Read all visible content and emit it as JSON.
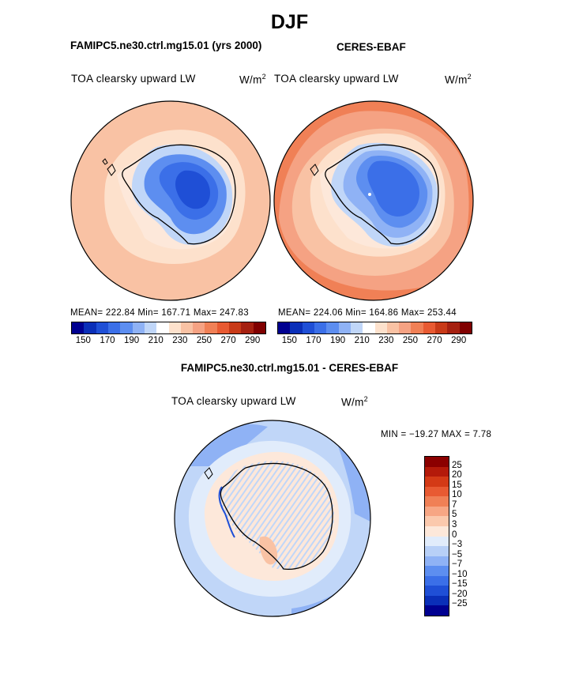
{
  "figure_title": "DJF",
  "panels": [
    {
      "title": "FAMIPC5.ne30.ctrl.mg15.01 (yrs 2000)",
      "variable": "TOA clearsky upward LW",
      "units": "W/m",
      "units_exp": "2",
      "stats": "MEAN= 222.84   Min= 167.71   Max= 247.83",
      "colorbar_ticks": [
        "150",
        "170",
        "190",
        "210",
        "230",
        "250",
        "270",
        "290"
      ]
    },
    {
      "title": "CERES-EBAF",
      "variable": "TOA clearsky upward LW",
      "units": "W/m",
      "units_exp": "2",
      "stats": "MEAN= 224.06   Min= 164.86   Max= 253.44",
      "colorbar_ticks": [
        "150",
        "170",
        "190",
        "210",
        "230",
        "250",
        "270",
        "290"
      ]
    }
  ],
  "difference": {
    "title": "FAMIPC5.ne30.ctrl.mg15.01 - CERES-EBAF",
    "variable": "TOA clearsky upward LW",
    "units": "W/m",
    "units_exp": "2",
    "stats": "MIN = −19.27 MAX =    7.78",
    "colorbar_ticks": [
      "25",
      "20",
      "15",
      "10",
      "7",
      "5",
      "3",
      "0",
      "−3",
      "−5",
      "−7",
      "−10",
      "−15",
      "−20",
      "−25"
    ]
  },
  "colors": {
    "abs_scale": [
      "#000090",
      "#0a2fb8",
      "#1f4fd6",
      "#3b6fe8",
      "#5d8ef0",
      "#8fb2f5",
      "#c0d6f8",
      "#ffffff",
      "#fde1cc",
      "#f9c2a4",
      "#f5a283",
      "#f08056",
      "#e85a32",
      "#c83a18",
      "#a52010",
      "#800000"
    ],
    "diff_scale": [
      "#8b0000",
      "#b41a0a",
      "#d43a16",
      "#e85a32",
      "#f08056",
      "#f7a684",
      "#fbc9ad",
      "#fde8da",
      "#e1ecfb",
      "#b8d0f7",
      "#8fb2f5",
      "#5d8ef0",
      "#3b6fe8",
      "#1f4fd6",
      "#0a2fb8",
      "#000090"
    ]
  }
}
